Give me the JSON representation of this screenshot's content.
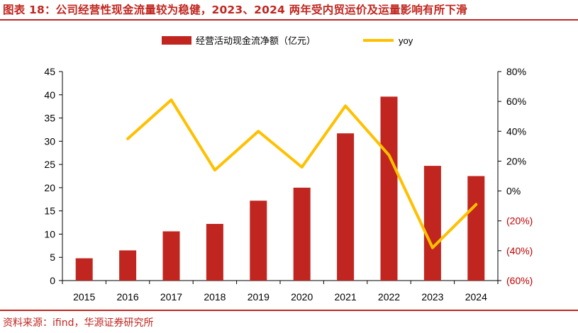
{
  "header": {
    "title": "图表 18：公司经营性现金流量较为稳健，2023、2024 两年受内贸运价及运量影响有所下滑"
  },
  "footer": {
    "source": "资料来源：ifind，华源证券研究所"
  },
  "colors": {
    "accent": "#c0261f",
    "bar": "#c0261f",
    "line": "#ffc000",
    "negative_tick": "#c00000"
  },
  "chart_data": {
    "type": "bar",
    "categories": [
      "2015",
      "2016",
      "2017",
      "2018",
      "2019",
      "2020",
      "2021",
      "2022",
      "2023",
      "2024"
    ],
    "series": [
      {
        "name": "经营活动现金流净额（亿元）",
        "type": "bar",
        "axis": "left",
        "values": [
          4.8,
          6.5,
          10.6,
          12.2,
          17.2,
          20.0,
          31.7,
          39.6,
          24.7,
          22.5
        ]
      },
      {
        "name": "yoy",
        "type": "line",
        "axis": "right",
        "values": [
          null,
          35,
          61,
          14,
          40,
          16,
          57,
          24,
          -38,
          -9
        ]
      }
    ],
    "y_left": {
      "min": 0,
      "max": 45,
      "step": 5,
      "ticks": [
        "0",
        "5",
        "10",
        "15",
        "20",
        "25",
        "30",
        "35",
        "40",
        "45"
      ]
    },
    "y_right": {
      "min": -60,
      "max": 80,
      "step": 20,
      "ticks": [
        "(60%)",
        "(40%)",
        "(20%)",
        "0%",
        "20%",
        "40%",
        "60%",
        "80%"
      ]
    },
    "legend": [
      "经营活动现金流净额（亿元）",
      "yoy"
    ],
    "legend_position": "top",
    "grid": false
  }
}
